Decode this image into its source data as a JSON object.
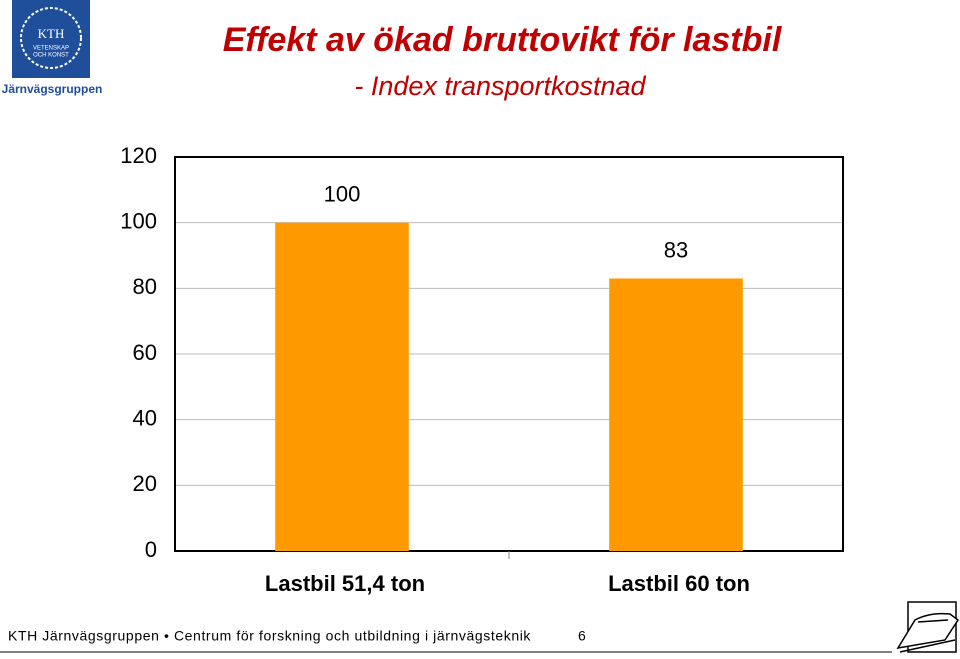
{
  "logo": {
    "lines": [
      "KTH",
      "VETENSKAP",
      "OCH KONST"
    ],
    "caption": "Järnvägsgruppen"
  },
  "chart_data": {
    "type": "bar",
    "title": "Effekt av ökad bruttovikt för lastbil",
    "subtitle": "- Index transportkostnad",
    "categories": [
      "Lastbil 51,4 ton",
      "Lastbil 60 ton"
    ],
    "values": [
      100,
      83
    ],
    "color": "#ff9900",
    "ylim": [
      0,
      120
    ],
    "yticks": [
      0,
      20,
      40,
      60,
      80,
      100,
      120
    ],
    "grid": true
  },
  "footer": {
    "text": "KTH Järnvägsgruppen • Centrum för forskning och utbildning i järnvägsteknik",
    "page_number": 6
  }
}
